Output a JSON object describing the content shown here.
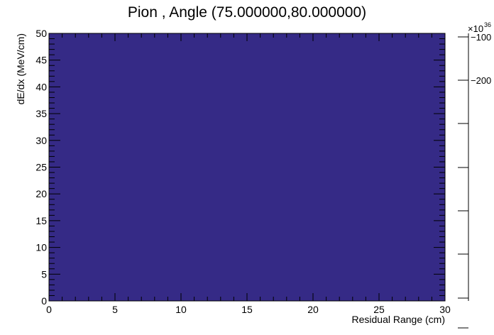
{
  "chart_data": {
    "type": "heatmap",
    "title": "Pion , Angle (75.000000,80.000000)",
    "xlabel": "Residual Range (cm)",
    "ylabel": "dE/dx (MeV/cm)",
    "xlim": [
      0,
      30
    ],
    "ylim": [
      0,
      50
    ],
    "x_ticks": [
      "0",
      "5",
      "10",
      "15",
      "20",
      "25",
      "30"
    ],
    "y_ticks": [
      "0",
      "5",
      "10",
      "15",
      "20",
      "25",
      "30",
      "35",
      "40",
      "45",
      "50"
    ],
    "fill_color": "#352a86",
    "colorbar": {
      "exponent_label": "×10",
      "exponent": "36",
      "tick_labels": [
        "−100",
        "−200"
      ]
    },
    "grid": false
  }
}
